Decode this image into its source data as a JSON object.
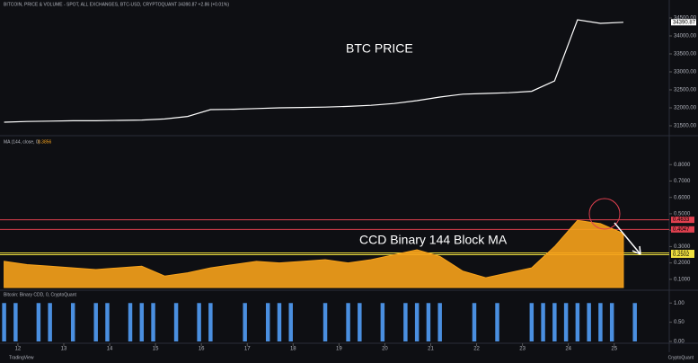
{
  "header": {
    "source": "TradingView",
    "brand": "CryptoQuant"
  },
  "chart_data": [
    {
      "type": "line",
      "title": "BITCOIN, PRICE & VOLUME - SPOT, ALL EXCHANGES, BTC-USD, CRYPTOQUANT  34390.87 +2.86 (+0.01%)",
      "last_value_label": "34390.87",
      "annotation": "BTC PRICE",
      "color": "#ffffff",
      "x": [
        11.7,
        12.2,
        12.7,
        13.2,
        13.7,
        14.2,
        14.7,
        15.2,
        15.7,
        16.2,
        16.7,
        17.2,
        17.7,
        18.2,
        18.7,
        19.2,
        19.7,
        20.2,
        20.7,
        21.2,
        21.7,
        22.2,
        22.7,
        23.2,
        23.7,
        24.2,
        24.7,
        25.2
      ],
      "values": [
        31600,
        31620,
        31630,
        31640,
        31640,
        31650,
        31660,
        31690,
        31760,
        31950,
        31960,
        31980,
        32000,
        32010,
        32020,
        32040,
        32070,
        32120,
        32200,
        32300,
        32380,
        32400,
        32420,
        32460,
        32750,
        34450,
        34350,
        34380
      ],
      "xlim": [
        11.61,
        26.2
      ],
      "ylim": [
        31300,
        34700
      ],
      "yticks": [
        {
          "value": 31500,
          "label": "31500.00"
        },
        {
          "value": 32000,
          "label": "32000.00"
        },
        {
          "value": 32500,
          "label": "32500.00"
        },
        {
          "value": 33000,
          "label": "33000.00"
        },
        {
          "value": 33500,
          "label": "33500.00"
        },
        {
          "value": 34000,
          "label": "34000.00"
        },
        {
          "value": 34500,
          "label": "34500.00"
        }
      ]
    },
    {
      "type": "area",
      "title": "MA (144, close, 0)",
      "last_value_label": "0.3856",
      "annotation": "CCD Binary 144 Block MA",
      "color": "#f7a21b",
      "x": [
        11.7,
        12.2,
        12.7,
        13.2,
        13.7,
        14.2,
        14.7,
        15.2,
        15.7,
        16.2,
        16.7,
        17.2,
        17.7,
        18.2,
        18.7,
        19.2,
        19.7,
        20.2,
        20.7,
        21.2,
        21.7,
        22.2,
        22.7,
        23.2,
        23.7,
        24.2,
        24.7,
        25.2
      ],
      "values": [
        0.21,
        0.19,
        0.18,
        0.17,
        0.16,
        0.17,
        0.18,
        0.12,
        0.14,
        0.17,
        0.19,
        0.21,
        0.2,
        0.21,
        0.22,
        0.2,
        0.22,
        0.25,
        0.28,
        0.24,
        0.15,
        0.11,
        0.14,
        0.17,
        0.3,
        0.46,
        0.44,
        0.38
      ],
      "xlim": [
        11.61,
        26.2
      ],
      "ylim": [
        0.05,
        0.9
      ],
      "yticks": [
        {
          "value": 0.1,
          "label": "0.1000"
        },
        {
          "value": 0.2,
          "label": "0.2000"
        },
        {
          "value": 0.3,
          "label": "0.3000"
        },
        {
          "value": 0.4,
          "label": "0.4000"
        },
        {
          "value": 0.5,
          "label": "0.5000"
        },
        {
          "value": 0.6,
          "label": "0.6000"
        },
        {
          "value": 0.7,
          "label": "0.7000"
        },
        {
          "value": 0.8,
          "label": "0.8000"
        }
      ],
      "reference_lines": [
        {
          "value": 0.4633,
          "color": "#e0404f"
        },
        {
          "value": 0.4047,
          "color": "#e0404f"
        },
        {
          "value": 0.2611,
          "color": "#f0e040"
        },
        {
          "value": 0.2502,
          "color": "#f0e040"
        }
      ]
    },
    {
      "type": "bar",
      "title": "Bitcoin: Binary CDD, 0, CryptoQuant",
      "color": "#4a8fe0",
      "x": [
        11.7,
        11.95,
        12.2,
        12.45,
        12.7,
        12.95,
        13.2,
        13.45,
        13.7,
        13.95,
        14.2,
        14.45,
        14.7,
        14.95,
        15.2,
        15.45,
        15.7,
        15.95,
        16.2,
        16.45,
        16.7,
        16.95,
        17.2,
        17.45,
        17.7,
        17.95,
        18.2,
        18.45,
        18.7,
        18.95,
        19.2,
        19.45,
        19.7,
        19.95,
        20.2,
        20.45,
        20.7,
        20.95,
        21.2,
        21.45,
        21.7,
        21.95,
        22.2,
        22.45,
        22.7,
        22.95,
        23.2,
        23.45,
        23.7,
        23.95,
        24.2,
        24.45,
        24.7,
        24.95,
        25.2,
        25.45
      ],
      "values": [
        1,
        1,
        0,
        1,
        1,
        0,
        1,
        0,
        1,
        1,
        0,
        1,
        1,
        1,
        0,
        1,
        0,
        1,
        1,
        0,
        0,
        1,
        0,
        1,
        1,
        1,
        0,
        0,
        1,
        0,
        1,
        1,
        0,
        1,
        0,
        1,
        1,
        1,
        1,
        0,
        0,
        1,
        0,
        1,
        0,
        0,
        1,
        1,
        1,
        1,
        1,
        1,
        1,
        1,
        0,
        1
      ],
      "xlim": [
        11.61,
        26.2
      ],
      "ylim": [
        0,
        1.1
      ],
      "yticks": [
        {
          "value": 0,
          "label": "0.00"
        },
        {
          "value": 0.5,
          "label": "0.50"
        },
        {
          "value": 1,
          "label": "1.00"
        }
      ],
      "xticks": [
        12,
        13,
        14,
        15,
        16,
        17,
        18,
        19,
        20,
        21,
        22,
        23,
        24,
        25
      ]
    }
  ]
}
